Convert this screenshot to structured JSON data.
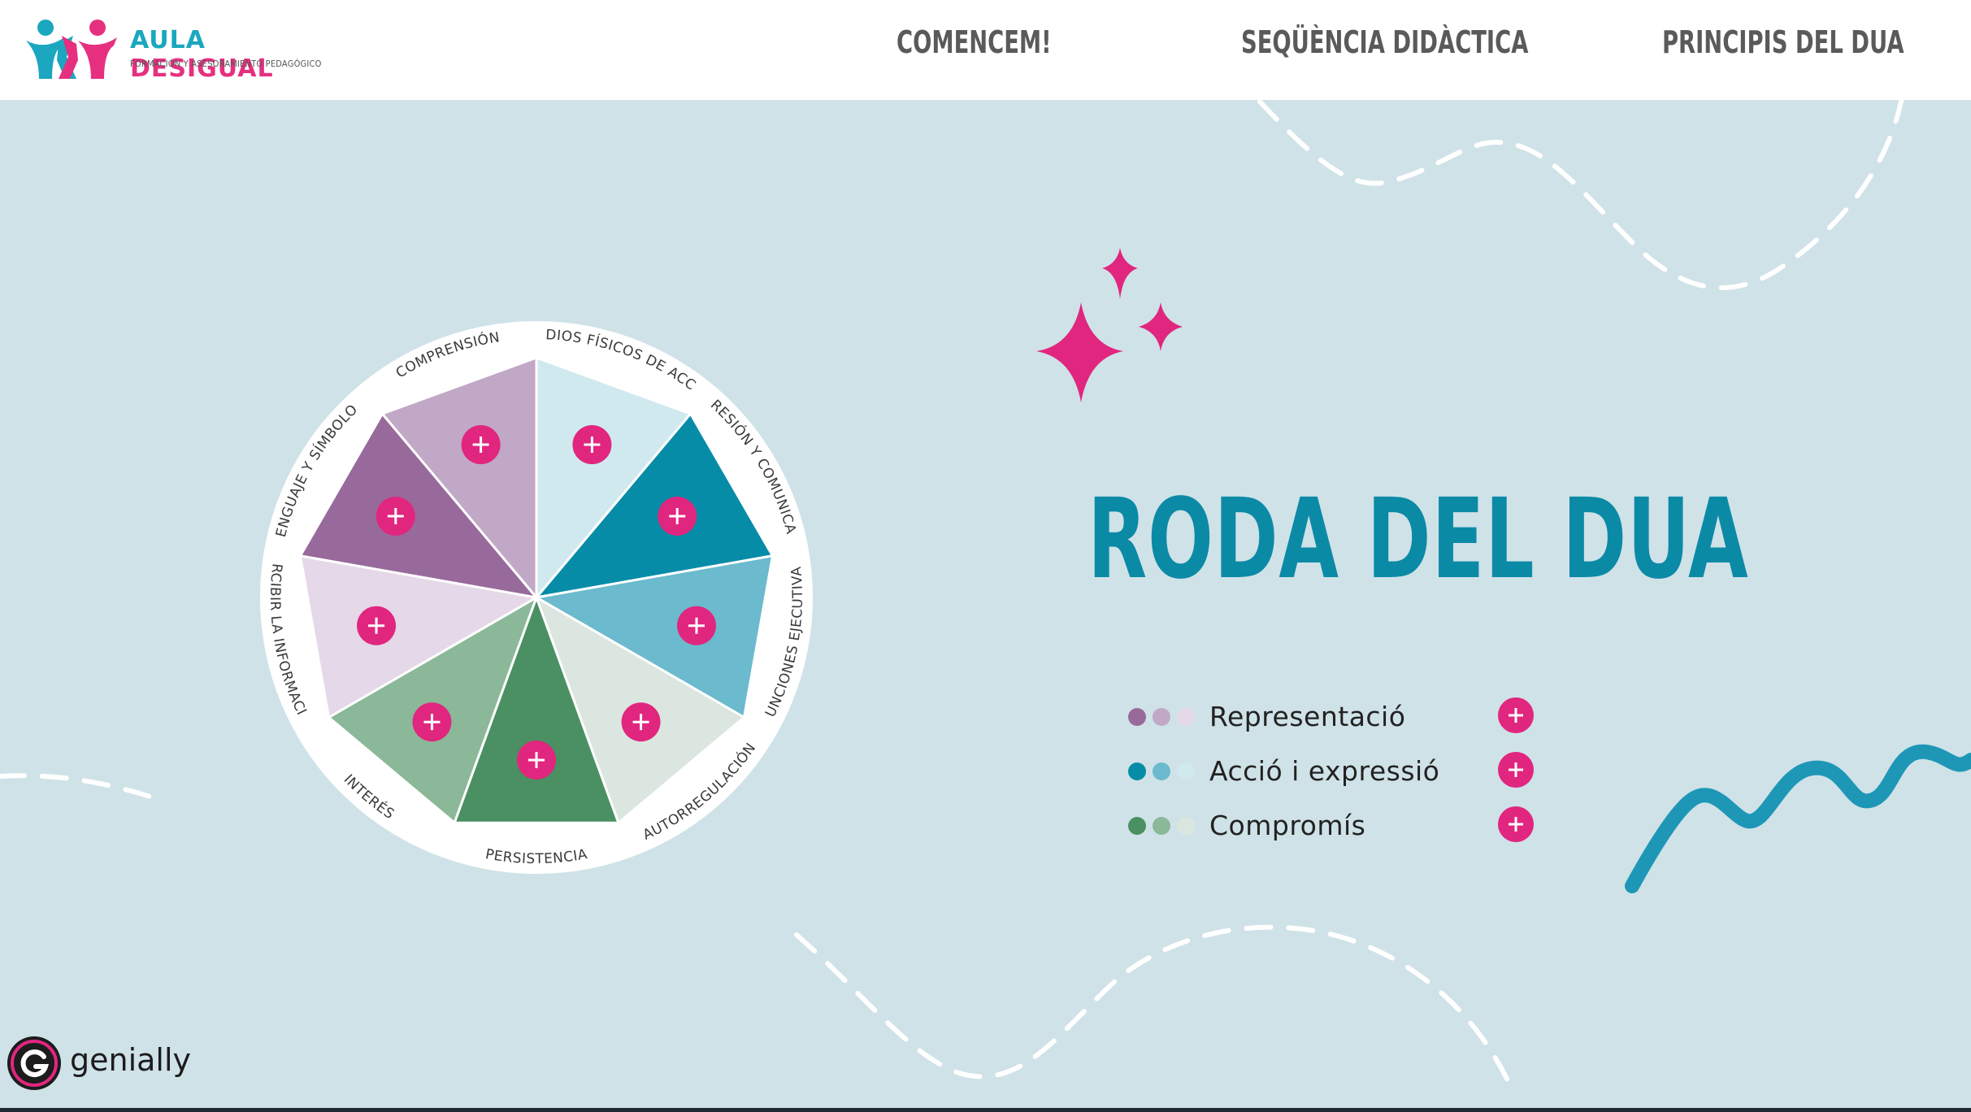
{
  "brand": {
    "name_part1": "AULA",
    "name_part2": "DESIGUAL",
    "tagline": "FORMACIÓN Y ASESORAMIENTO PEDAGÓGICO"
  },
  "nav": {
    "items": [
      {
        "label": "COMENCEM!"
      },
      {
        "label": "SEQÜÈNCIA DIDÀCTICA"
      },
      {
        "label": "PRINCIPIS DEL DUA"
      }
    ]
  },
  "wheel": {
    "segments": [
      {
        "label": "MEDIOS FÍSICOS DE ACCIÓN",
        "color": "#d0e9ef",
        "group": "Acció i expressió"
      },
      {
        "label": "EXPRESIÓN Y COMUNICACIÓN",
        "color": "#078ca8",
        "group": "Acció i expressió"
      },
      {
        "label": "FUNCIONES EJECUTIVAS",
        "color": "#6bbacd",
        "group": "Acció i expressió"
      },
      {
        "label": "AUTORREGULACIÓN",
        "color": "#dae6df",
        "group": "Compromís"
      },
      {
        "label": "PERSISTENCIA",
        "color": "#4a9062",
        "group": "Compromís"
      },
      {
        "label": "INTERÉS",
        "color": "#8bb898",
        "group": "Compromís"
      },
      {
        "label": "PERCIBIR LA INFORMACIÓN",
        "color": "#e5d8e8",
        "group": "Representació"
      },
      {
        "label": "LENGUAJE Y SÍMBOLOS",
        "color": "#986a9c",
        "group": "Representació"
      },
      {
        "label": "COMPRENSIÓN",
        "color": "#c1a8c6",
        "group": "Representació"
      }
    ]
  },
  "title": "RODA DEL DUA",
  "legend": [
    {
      "label": "Representació",
      "colors": [
        "#986a9c",
        "#c1a8c6",
        "#e5d8e8"
      ]
    },
    {
      "label": "Acció i expressió",
      "colors": [
        "#078ca8",
        "#6bbacd",
        "#d0e9ef"
      ]
    },
    {
      "label": "Compromís",
      "colors": [
        "#4a9062",
        "#8bb898",
        "#dae6df"
      ]
    }
  ],
  "footer": {
    "powered_by": "genially"
  },
  "colors": {
    "accent": "#e1267f",
    "title": "#0b8aa6",
    "background": "#cfe2e8",
    "nav_text": "#5a5a5a"
  }
}
